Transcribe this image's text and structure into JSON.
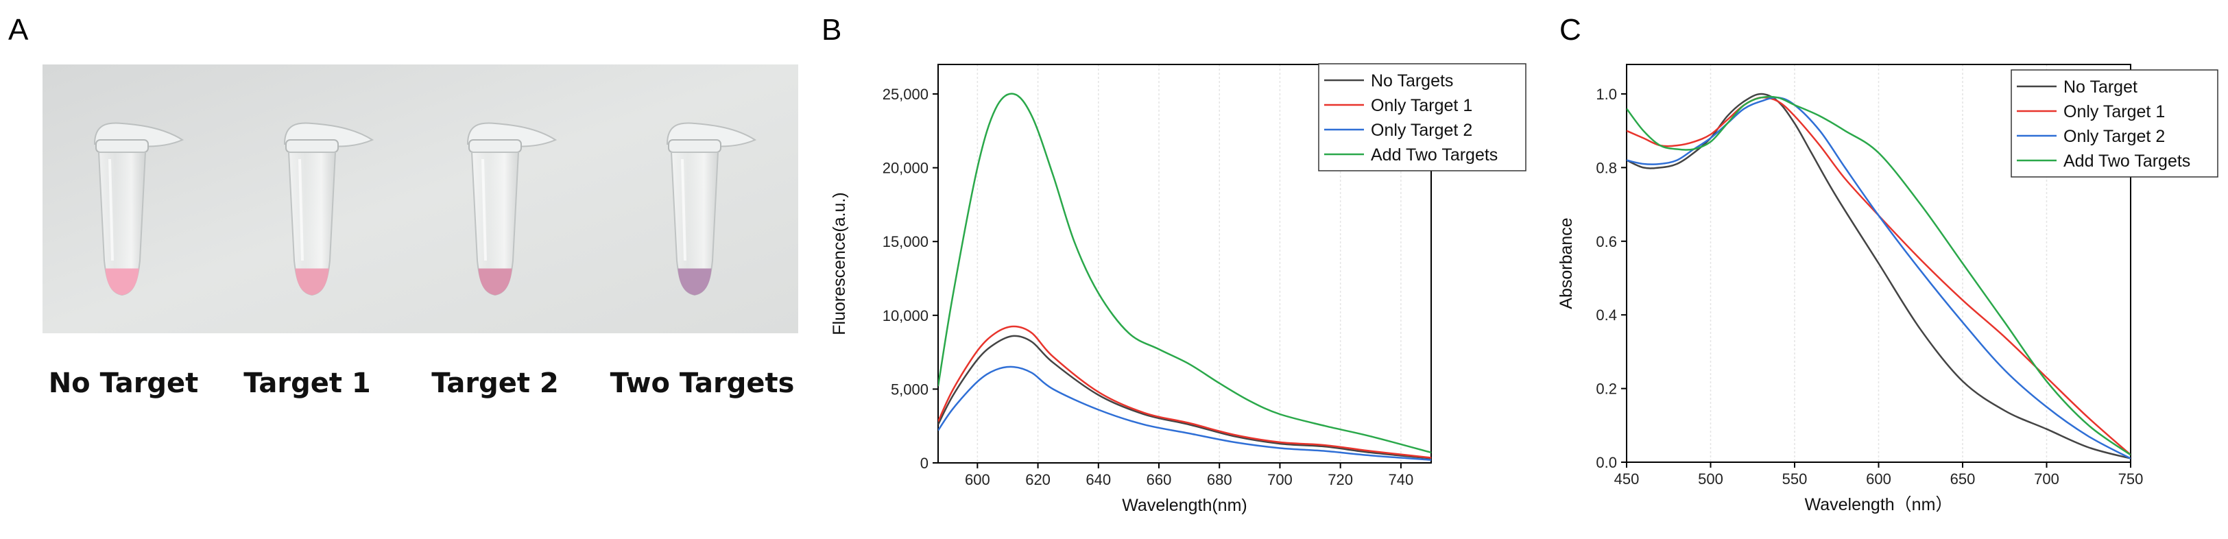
{
  "panels": {
    "a": {
      "letter": "A",
      "tube_labels": [
        "No Target",
        "Target 1",
        "Target 2",
        "Two Targets"
      ],
      "tube_colors": [
        "#f4a7bc",
        "#eda2b6",
        "#d993ad",
        "#b58fb3"
      ]
    },
    "b": {
      "letter": "B"
    },
    "c": {
      "letter": "C"
    }
  },
  "chart_data": [
    {
      "type": "line",
      "panel": "B",
      "title": "",
      "xlabel": "Wavelength(nm)",
      "ylabel": "Fluorescence(a.u.)",
      "xlim": [
        587,
        750
      ],
      "ylim": [
        0,
        27000
      ],
      "xticks": [
        600,
        620,
        640,
        660,
        680,
        700,
        720,
        740
      ],
      "yticks": [
        0,
        5000,
        10000,
        15000,
        20000,
        25000
      ],
      "ytick_labels": [
        "0",
        "5,000",
        "10,000",
        "15,000",
        "20,000",
        "25,000"
      ],
      "grid": "vertical",
      "legend_position": "top-right",
      "series": [
        {
          "name": "No Targets",
          "color": "#444444",
          "x": [
            587,
            592,
            600,
            606,
            612,
            618,
            625,
            640,
            655,
            670,
            685,
            700,
            715,
            730,
            750
          ],
          "y": [
            2600,
            4600,
            7000,
            8100,
            8600,
            8200,
            6800,
            4600,
            3300,
            2600,
            1800,
            1300,
            1100,
            700,
            300
          ]
        },
        {
          "name": "Only Target 1",
          "color": "#e8342c",
          "x": [
            587,
            592,
            600,
            606,
            612,
            618,
            625,
            640,
            655,
            670,
            685,
            700,
            715,
            730,
            750
          ],
          "y": [
            2800,
            5000,
            7600,
            8800,
            9250,
            8800,
            7200,
            4800,
            3400,
            2700,
            1900,
            1400,
            1200,
            800,
            350
          ]
        },
        {
          "name": "Only Target 2",
          "color": "#2f6fd6",
          "x": [
            587,
            592,
            600,
            606,
            612,
            618,
            625,
            640,
            655,
            670,
            685,
            700,
            715,
            730,
            750
          ],
          "y": [
            2200,
            3700,
            5500,
            6300,
            6500,
            6100,
            5000,
            3600,
            2600,
            2000,
            1400,
            1000,
            800,
            500,
            200
          ]
        },
        {
          "name": "Add Two Targets",
          "color": "#2aa84a",
          "x": [
            587,
            592,
            600,
            606,
            612,
            618,
            625,
            632,
            640,
            650,
            660,
            670,
            680,
            690,
            700,
            715,
            730,
            750
          ],
          "y": [
            5200,
            11500,
            20000,
            24000,
            25000,
            23500,
            19500,
            15000,
            11500,
            8800,
            7700,
            6700,
            5400,
            4200,
            3300,
            2500,
            1800,
            700
          ]
        }
      ]
    },
    {
      "type": "line",
      "panel": "C",
      "title": "",
      "xlabel": "Wavelength（nm）",
      "ylabel": "Absorbance",
      "xlim": [
        450,
        750
      ],
      "ylim": [
        0,
        1.08
      ],
      "xticks": [
        450,
        500,
        550,
        600,
        650,
        700,
        750
      ],
      "yticks": [
        0.0,
        0.2,
        0.4,
        0.6,
        0.8,
        1.0
      ],
      "ytick_labels": [
        "0.0",
        "0.2",
        "0.4",
        "0.6",
        "0.8",
        "1.0"
      ],
      "grid": "vertical",
      "legend_position": "top-right",
      "series": [
        {
          "name": "No Target",
          "color": "#444444",
          "x": [
            450,
            460,
            470,
            480,
            490,
            500,
            510,
            520,
            530,
            540,
            550,
            560,
            575,
            600,
            625,
            650,
            675,
            700,
            725,
            750
          ],
          "y": [
            0.82,
            0.8,
            0.8,
            0.81,
            0.84,
            0.88,
            0.94,
            0.98,
            1.0,
            0.98,
            0.92,
            0.84,
            0.72,
            0.54,
            0.36,
            0.22,
            0.14,
            0.09,
            0.04,
            0.01
          ]
        },
        {
          "name": "Only Target 1",
          "color": "#e8342c",
          "x": [
            450,
            460,
            470,
            480,
            490,
            500,
            510,
            520,
            530,
            540,
            550,
            565,
            580,
            600,
            625,
            650,
            675,
            700,
            725,
            750
          ],
          "y": [
            0.9,
            0.88,
            0.86,
            0.86,
            0.87,
            0.89,
            0.93,
            0.97,
            0.99,
            0.98,
            0.94,
            0.86,
            0.77,
            0.67,
            0.55,
            0.44,
            0.34,
            0.23,
            0.12,
            0.02
          ]
        },
        {
          "name": "Only Target 2",
          "color": "#2f6fd6",
          "x": [
            450,
            460,
            470,
            480,
            490,
            500,
            510,
            520,
            530,
            540,
            550,
            565,
            580,
            600,
            625,
            650,
            675,
            700,
            725,
            750
          ],
          "y": [
            0.82,
            0.81,
            0.81,
            0.82,
            0.85,
            0.88,
            0.92,
            0.96,
            0.98,
            0.99,
            0.97,
            0.9,
            0.8,
            0.67,
            0.52,
            0.38,
            0.25,
            0.15,
            0.07,
            0.01
          ]
        },
        {
          "name": "Add Two Targets",
          "color": "#2aa84a",
          "x": [
            450,
            460,
            470,
            480,
            490,
            500,
            510,
            520,
            530,
            540,
            550,
            565,
            580,
            600,
            625,
            650,
            675,
            700,
            725,
            750
          ],
          "y": [
            0.96,
            0.9,
            0.86,
            0.85,
            0.85,
            0.87,
            0.92,
            0.97,
            0.99,
            0.99,
            0.97,
            0.94,
            0.9,
            0.84,
            0.7,
            0.54,
            0.38,
            0.22,
            0.1,
            0.02
          ]
        }
      ]
    }
  ]
}
